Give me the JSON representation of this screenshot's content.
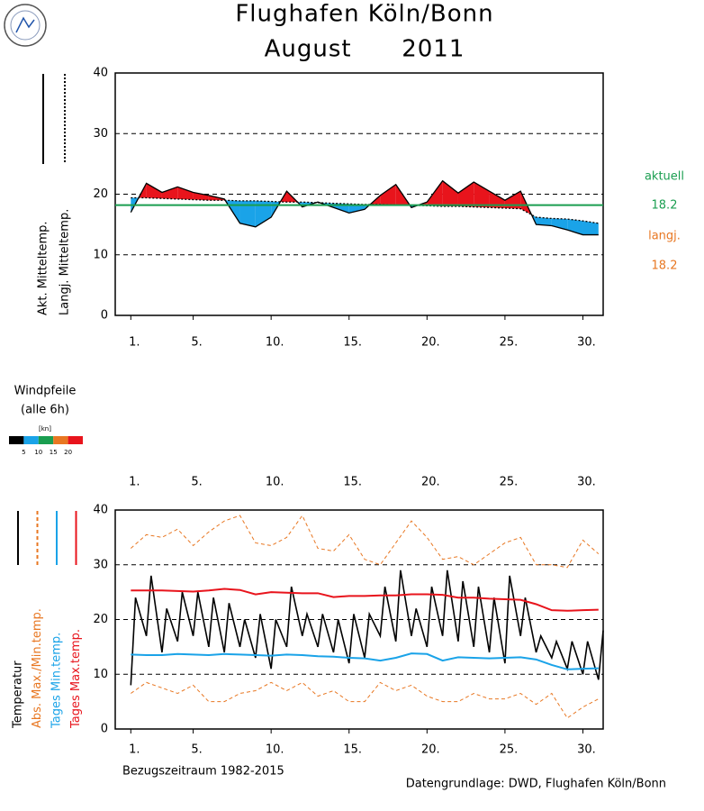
{
  "chart_data": [
    {
      "type": "area-diff",
      "title": "Flughafen Köln/Bonn",
      "subtitle": "August      2011",
      "x": [
        1,
        2,
        3,
        4,
        5,
        6,
        7,
        8,
        9,
        10,
        11,
        12,
        13,
        14,
        15,
        16,
        17,
        18,
        19,
        20,
        21,
        22,
        23,
        24,
        25,
        26,
        27,
        28,
        29,
        30,
        31
      ],
      "series": [
        {
          "name": "Akt. Mitteltemp.",
          "color": "#000000",
          "style": "solid",
          "values": [
            17.0,
            21.8,
            20.3,
            21.2,
            20.3,
            19.8,
            19.2,
            15.2,
            14.6,
            16.2,
            20.5,
            17.9,
            18.7,
            17.8,
            16.9,
            17.5,
            19.8,
            21.6,
            17.8,
            18.7,
            22.2,
            20.2,
            22.0,
            20.5,
            19.0,
            20.5,
            15.0,
            14.8,
            14.1,
            13.3,
            13.3
          ]
        },
        {
          "name": "Langj. Mitteltemp.",
          "color": "#000000",
          "style": "dotted",
          "values": [
            19.4,
            19.4,
            19.3,
            19.2,
            19.1,
            19.0,
            19.0,
            18.9,
            18.9,
            18.8,
            18.7,
            18.7,
            18.6,
            18.5,
            18.4,
            18.3,
            18.3,
            18.2,
            18.2,
            18.1,
            18.0,
            18.0,
            17.9,
            17.8,
            17.7,
            17.6,
            16.2,
            16.0,
            15.9,
            15.6,
            15.2
          ]
        }
      ],
      "above_color": "#e8141c",
      "below_color": "#1aa3e8",
      "actual_label": "aktuell",
      "mean_actual": 18.2,
      "actual_color": "#1a9e50",
      "longterm_label": "langj.",
      "mean_longterm": 18.2,
      "longterm_color": "#e87722",
      "xlim": [
        0,
        31.3
      ],
      "xticks": [
        {
          "value": 1,
          "label": "1."
        },
        {
          "value": 5,
          "label": "5."
        },
        {
          "value": 10,
          "label": "10."
        },
        {
          "value": 15,
          "label": "15."
        },
        {
          "value": 20,
          "label": "20."
        },
        {
          "value": 25,
          "label": "25."
        },
        {
          "value": 30,
          "label": "30."
        }
      ],
      "ylim": [
        0,
        40
      ],
      "yticks": [
        0,
        10,
        20,
        30,
        40
      ],
      "grid": true
    },
    {
      "type": "wind",
      "label": "Windpfeile",
      "sublabel": "(alle 6h)",
      "unit": "[kn]",
      "colorbar_colors": [
        "#000000",
        "#1aa3e8",
        "#1a9e50",
        "#e87722",
        "#e8141c"
      ],
      "colorbar_ticks": [
        5,
        10,
        15,
        20
      ],
      "xlim": [
        0,
        31.3
      ],
      "xticks": [
        {
          "value": 1,
          "label": "1."
        },
        {
          "value": 5,
          "label": "5."
        },
        {
          "value": 10,
          "label": "10."
        },
        {
          "value": 15,
          "label": "15."
        },
        {
          "value": 20,
          "label": "20."
        },
        {
          "value": 25,
          "label": "25."
        },
        {
          "value": 30,
          "label": "30."
        }
      ]
    },
    {
      "type": "line",
      "x": [
        1,
        2,
        3,
        4,
        5,
        6,
        7,
        8,
        9,
        10,
        11,
        12,
        13,
        14,
        15,
        16,
        17,
        18,
        19,
        20,
        21,
        22,
        23,
        24,
        25,
        26,
        27,
        28,
        29,
        30,
        31
      ],
      "series": [
        {
          "name": "Temperatur",
          "color": "#000000",
          "style": "solid",
          "width": 1.6,
          "x": [
            1,
            1.3,
            2,
            2.3,
            3,
            3.3,
            4,
            4.3,
            5,
            5.3,
            6,
            6.3,
            7,
            7.3,
            8,
            8.3,
            9,
            9.3,
            10,
            10.3,
            11,
            11.3,
            12,
            12.3,
            13,
            13.3,
            14,
            14.3,
            15,
            15.3,
            16,
            16.3,
            17,
            17.3,
            18,
            18.3,
            19,
            19.3,
            20,
            20.3,
            21,
            21.3,
            22,
            22.3,
            23,
            23.3,
            24,
            24.3,
            25,
            25.3,
            26,
            26.3,
            27,
            27.3,
            28,
            28.3,
            29,
            29.3,
            30,
            30.3,
            31,
            31.3
          ],
          "values": [
            8,
            24,
            17,
            28,
            14,
            22,
            16,
            25,
            17,
            25,
            15,
            24,
            14,
            23,
            15,
            20,
            13,
            21,
            11,
            20,
            15,
            26,
            17,
            21,
            15,
            21,
            14,
            20,
            12,
            21,
            13,
            21,
            17,
            26,
            16,
            29,
            17,
            22,
            15,
            26,
            17,
            29,
            16,
            27,
            15,
            26,
            14,
            24,
            12,
            28,
            17,
            24,
            14,
            17,
            13,
            16,
            11,
            16,
            10,
            16,
            9,
            18
          ]
        },
        {
          "name": "Abs. Max./Min.temp.",
          "color": "#e87722",
          "style": "dashed",
          "width": 1,
          "values": [
            33,
            35.5,
            35,
            36.5,
            33.5,
            36,
            38,
            39,
            34,
            33.5,
            35,
            39,
            33,
            32.5,
            35.5,
            31,
            30,
            34,
            38,
            35,
            31,
            31.5,
            30,
            32,
            34,
            35,
            30,
            30,
            29.5,
            34.5,
            32
          ],
          "min_values": [
            6.5,
            8.5,
            7.5,
            6.5,
            8,
            5,
            5,
            6.5,
            7,
            8.5,
            7,
            8.5,
            6,
            7,
            5,
            5,
            8.5,
            7,
            8,
            6,
            5,
            5,
            6.5,
            5.5,
            5.5,
            6.5,
            4.5,
            6.5,
            2,
            4,
            5.5
          ]
        },
        {
          "name": "Tages Min.temp.",
          "color": "#1aa3e8",
          "style": "solid",
          "width": 2,
          "values": [
            13.6,
            13.5,
            13.5,
            13.7,
            13.6,
            13.5,
            13.7,
            13.6,
            13.5,
            13.4,
            13.6,
            13.5,
            13.3,
            13.2,
            13.0,
            12.9,
            12.5,
            13.0,
            13.8,
            13.7,
            12.5,
            13.1,
            13.0,
            12.9,
            13.0,
            13.1,
            12.7,
            11.7,
            10.9,
            11.0,
            11.1
          ]
        },
        {
          "name": "Tages Max.temp.",
          "color": "#e8141c",
          "style": "solid",
          "width": 2,
          "values": [
            25.3,
            25.3,
            25.3,
            25.2,
            25.1,
            25.3,
            25.6,
            25.4,
            24.6,
            25.0,
            24.9,
            24.8,
            24.8,
            24.1,
            24.3,
            24.3,
            24.4,
            24.4,
            24.6,
            24.6,
            24.5,
            24.0,
            24.0,
            23.8,
            23.7,
            23.6,
            22.8,
            21.7,
            21.6,
            21.7,
            21.8
          ]
        }
      ],
      "reference_period": "Bezugszeitraum 1982-2015",
      "source": "Datengrundlage: DWD, Flughafen Köln/Bonn",
      "xlim": [
        0,
        31.3
      ],
      "xticks": [
        {
          "value": 1,
          "label": "1."
        },
        {
          "value": 5,
          "label": "5."
        },
        {
          "value": 10,
          "label": "10."
        },
        {
          "value": 15,
          "label": "15."
        },
        {
          "value": 20,
          "label": "20."
        },
        {
          "value": 25,
          "label": "25."
        },
        {
          "value": 30,
          "label": "30."
        }
      ],
      "ylim": [
        0,
        40
      ],
      "yticks": [
        0,
        10,
        20,
        30,
        40
      ],
      "grid": true
    }
  ]
}
